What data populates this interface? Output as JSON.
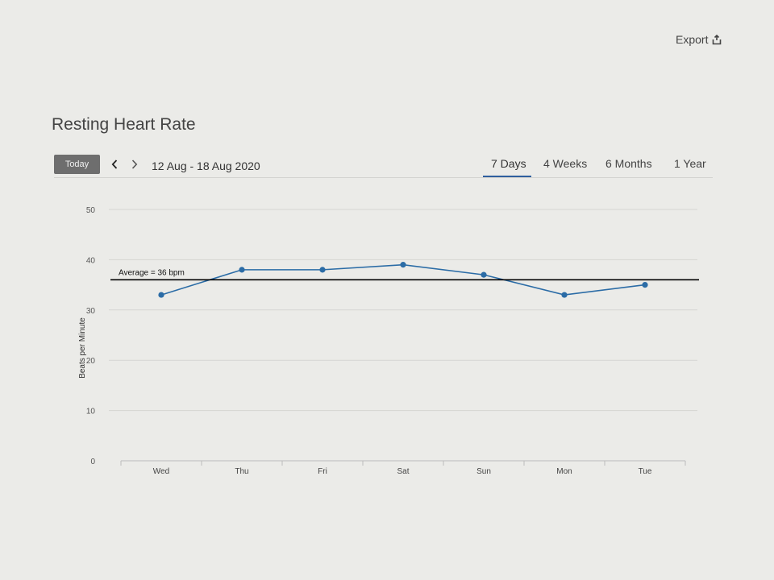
{
  "header": {
    "export_label": "Export",
    "export_icon": "export-icon"
  },
  "page_title": "Resting Heart Rate",
  "toolbar": {
    "today_label": "Today",
    "prev_icon": "chevron-left-icon",
    "next_icon": "chevron-right-icon",
    "date_range": "12 Aug - 18 Aug 2020",
    "tabs": [
      {
        "label": "7 Days",
        "active": true
      },
      {
        "label": "4 Weeks",
        "active": false
      },
      {
        "label": "6 Months",
        "active": false
      },
      {
        "label": "1 Year",
        "active": false
      }
    ],
    "accent_color": "#2f5f9e"
  },
  "chart_data": {
    "type": "line",
    "categories": [
      "Wed",
      "Thu",
      "Fri",
      "Sat",
      "Sun",
      "Mon",
      "Tue"
    ],
    "series": [
      {
        "values": [
          33,
          38,
          38,
          39,
          37,
          33,
          35
        ],
        "color": "#2b6ca6"
      }
    ],
    "average": {
      "value": 36,
      "label": "Average = 36 bpm",
      "color": "#000000"
    },
    "ylabel": "Beats per Minute",
    "ylim": [
      0,
      50
    ],
    "yticks": [
      0,
      10,
      20,
      30,
      40,
      50
    ],
    "grid": true
  }
}
